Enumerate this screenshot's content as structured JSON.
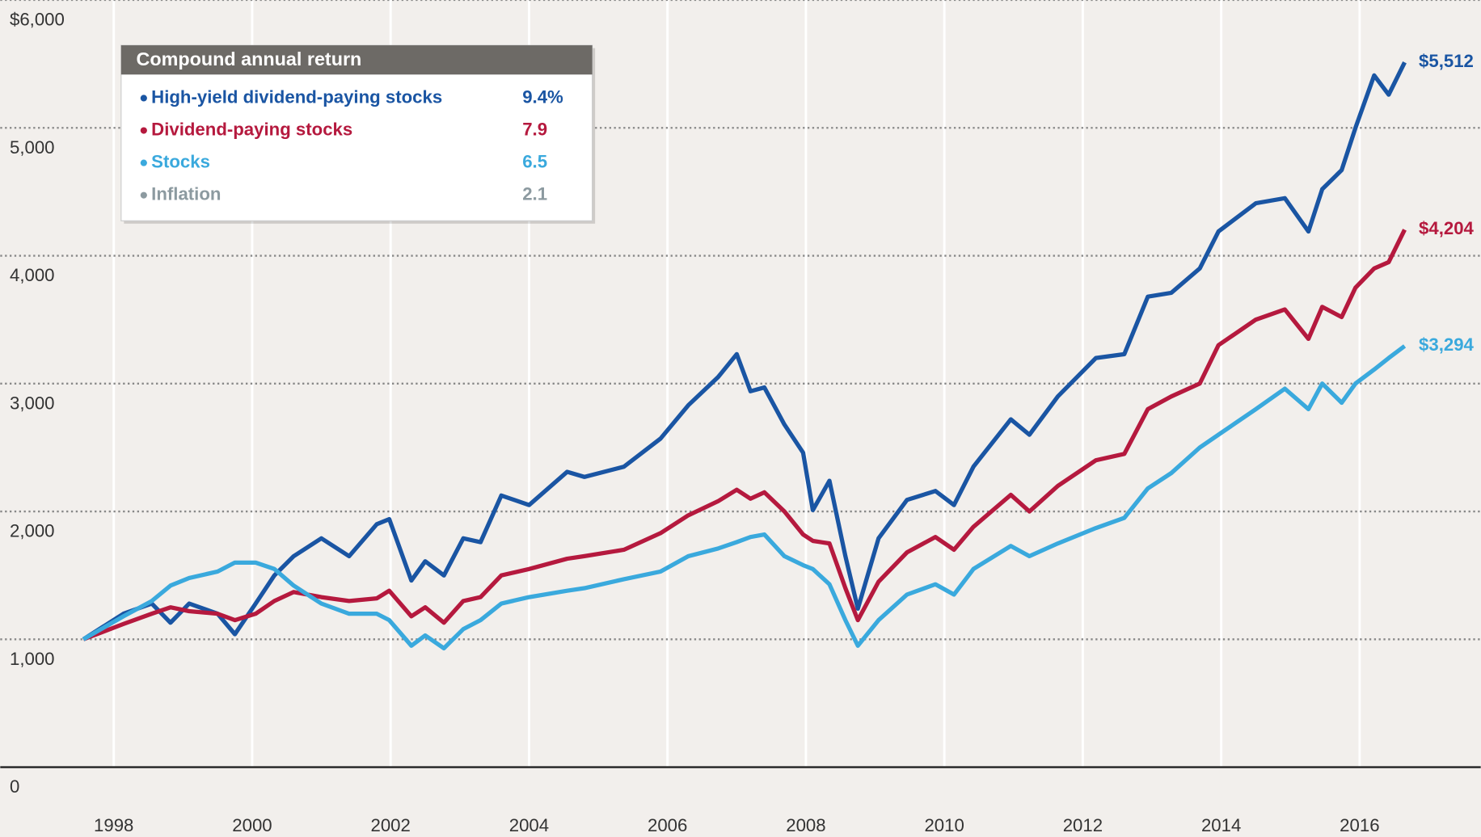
{
  "chart_data": {
    "type": "line",
    "x": [
      1997.56,
      1998.14,
      1998.55,
      1998.82,
      1999.09,
      1999.5,
      1999.75,
      2000.05,
      2000.32,
      2000.6,
      2001.0,
      2001.4,
      2001.8,
      2001.98,
      2002.3,
      2002.5,
      2002.77,
      2003.05,
      2003.3,
      2003.6,
      2004.0,
      2004.55,
      2004.8,
      2005.37,
      2005.9,
      2006.3,
      2006.73,
      2007.0,
      2007.2,
      2007.4,
      2007.69,
      2007.96,
      2008.1,
      2008.34,
      2008.57,
      2008.75,
      2009.05,
      2009.46,
      2009.87,
      2010.14,
      2010.42,
      2010.96,
      2011.23,
      2011.64,
      2012.19,
      2012.6,
      2012.94,
      2013.28,
      2013.69,
      2013.96,
      2014.5,
      2014.92,
      2015.26,
      2015.46,
      2015.74,
      2015.94,
      2016.21,
      2016.42,
      2016.65
    ],
    "series": [
      {
        "name": "High-yield dividend-paying stocks",
        "color": "#1a55a3",
        "return": 9.4,
        "return_label": "9.4%",
        "end_label": "$5,512",
        "values": [
          1000,
          1200,
          1280,
          1130,
          1280,
          1200,
          1040,
          1280,
          1500,
          1650,
          1790,
          1650,
          1900,
          1940,
          1460,
          1610,
          1500,
          1790,
          1760,
          2125,
          2050,
          2310,
          2270,
          2350,
          2570,
          2830,
          3050,
          3230,
          2940,
          2970,
          2680,
          2460,
          2010,
          2240,
          1650,
          1240,
          1790,
          2090,
          2160,
          2050,
          2350,
          2720,
          2600,
          2900,
          3200,
          3230,
          3680,
          3710,
          3900,
          4190,
          4410,
          4450,
          4190,
          4520,
          4670,
          5000,
          5410,
          5260,
          5512
        ]
      },
      {
        "name": "Dividend-paying stocks",
        "color": "#b5193e",
        "return": 7.9,
        "end_label": "$4,204",
        "values": [
          1000,
          1120,
          1200,
          1250,
          1220,
          1200,
          1150,
          1200,
          1300,
          1370,
          1330,
          1300,
          1320,
          1380,
          1180,
          1250,
          1130,
          1300,
          1330,
          1500,
          1550,
          1630,
          1650,
          1700,
          1830,
          1970,
          2080,
          2170,
          2100,
          2150,
          2000,
          1820,
          1770,
          1750,
          1400,
          1150,
          1450,
          1680,
          1800,
          1700,
          1880,
          2130,
          2000,
          2200,
          2400,
          2450,
          2800,
          2900,
          3000,
          3300,
          3500,
          3580,
          3350,
          3600,
          3520,
          3750,
          3900,
          3950,
          4204
        ]
      },
      {
        "name": "Stocks",
        "color": "#3aa9dd",
        "return": 6.5,
        "end_label": "$3,294",
        "values": [
          1000,
          1180,
          1300,
          1420,
          1480,
          1530,
          1600,
          1600,
          1550,
          1420,
          1280,
          1200,
          1200,
          1150,
          950,
          1030,
          930,
          1080,
          1150,
          1280,
          1330,
          1380,
          1400,
          1470,
          1530,
          1650,
          1710,
          1760,
          1800,
          1820,
          1650,
          1580,
          1550,
          1430,
          1150,
          950,
          1150,
          1350,
          1430,
          1350,
          1550,
          1730,
          1650,
          1750,
          1870,
          1950,
          2180,
          2300,
          2500,
          2600,
          2800,
          2960,
          2800,
          3000,
          2850,
          3000,
          3110,
          3200,
          3294
        ]
      }
    ],
    "legend": {
      "title": "Compound annual return",
      "extra": [
        {
          "name": "Inflation",
          "color": "#8c9aa0",
          "return": 2.1
        }
      ]
    },
    "xlim": [
      1996.36,
      2017.75
    ],
    "xticks": [
      1998,
      2000,
      2002,
      2004,
      2006,
      2008,
      2010,
      2012,
      2014,
      2016
    ],
    "ylim": [
      0,
      6000
    ],
    "yticks": [
      0,
      {
        "value": 1000,
        "label": "1,000"
      },
      {
        "value": 2000,
        "label": "2,000"
      },
      {
        "value": 3000,
        "label": "3,000"
      },
      {
        "value": 4000,
        "label": "4,000"
      },
      {
        "value": 5000,
        "label": "5,000"
      },
      {
        "value": 6000,
        "label": "$6,000"
      }
    ],
    "grid": true
  }
}
